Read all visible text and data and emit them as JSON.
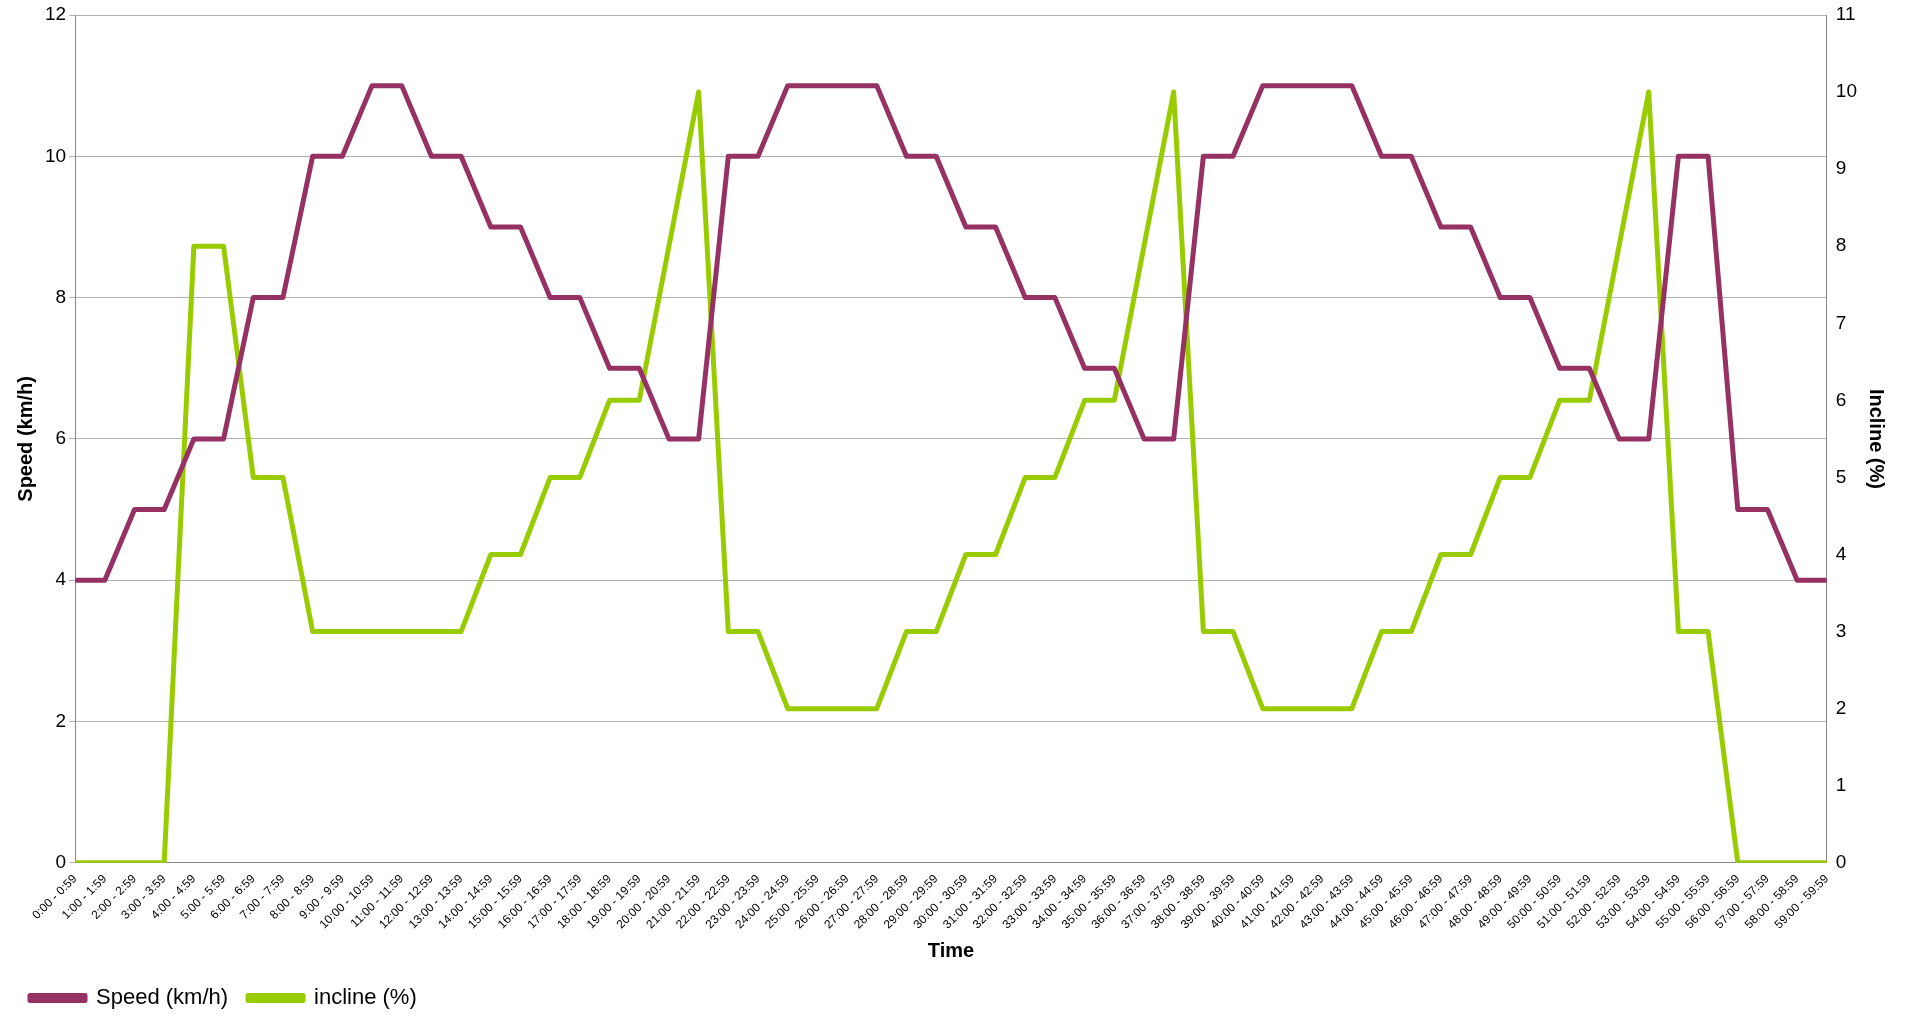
{
  "chart_data": {
    "type": "line",
    "xlabel": "Time",
    "ylabel": "Speed (km/h)",
    "y2label": "Incline (%)",
    "categories": [
      "0:00 - 0:59",
      "1:00 - 1:59",
      "2:00 - 2:59",
      "3:00 - 3:59",
      "4:00 - 4:59",
      "5:00 - 5:59",
      "6:00 - 6:59",
      "7:00 - 7:59",
      "8:00 - 8:59",
      "9:00 - 9:59",
      "10:00 - 10:59",
      "11:00 - 11:59",
      "12:00 - 12:59",
      "13:00 - 13:59",
      "14:00 - 14:59",
      "15:00 - 15:59",
      "16:00 - 16:59",
      "17:00 - 17:59",
      "18:00 - 18:59",
      "19:00 - 19:59",
      "20:00 - 20:59",
      "21:00 - 21:59",
      "22:00 - 22:59",
      "23:00 - 23:59",
      "24:00 - 24:59",
      "25:00 - 25:59",
      "26:00 - 26:59",
      "27:00 - 27:59",
      "28:00 - 28:59",
      "29:00 - 29:59",
      "30:00 - 30:59",
      "31:00 - 31:59",
      "32:00 - 32:59",
      "33:00 - 33:59",
      "34:00 - 34:59",
      "35:00 - 35:59",
      "36:00 - 36:59",
      "37:00 - 37:59",
      "38:00 - 38:59",
      "39:00 - 39:59",
      "40:00 - 40:59",
      "41:00 - 41:59",
      "42:00 - 42:59",
      "43:00 - 43:59",
      "44:00 - 44:59",
      "45:00 - 45:59",
      "46:00 - 46:59",
      "47:00 - 47:59",
      "48:00 - 48:59",
      "49:00 - 49:59",
      "50:00 - 50:59",
      "51:00 - 51:59",
      "52:00 - 52:59",
      "53:00 - 53:59",
      "54:00 - 54:59",
      "55:00 - 55:59",
      "56:00 - 56:59",
      "57:00 - 57:59",
      "58:00 - 58:59",
      "59:00 - 59:59"
    ],
    "series": [
      {
        "name": "Speed (km/h)",
        "color": "#953163",
        "values": [
          4,
          4,
          5,
          5,
          6,
          6,
          8,
          8,
          10,
          10,
          11,
          11,
          10,
          10,
          9,
          9,
          8,
          8,
          7,
          7,
          6,
          6,
          10,
          10,
          11,
          11,
          11,
          11,
          10,
          10,
          9,
          9,
          8,
          8,
          7,
          7,
          6,
          6,
          10,
          10,
          11,
          11,
          11,
          11,
          10,
          10,
          9,
          9,
          8,
          8,
          7,
          7,
          6,
          6,
          10,
          10,
          5,
          5,
          4,
          4
        ]
      },
      {
        "name": "incline (%)",
        "color": "#99cc00",
        "axis": "y2",
        "values": [
          0,
          0,
          0,
          0,
          8,
          8,
          5,
          5,
          3,
          3,
          3,
          3,
          3,
          3,
          4,
          4,
          5,
          5,
          6,
          6,
          8,
          10,
          3,
          3,
          2,
          2,
          2,
          2,
          3,
          3,
          4,
          4,
          5,
          5,
          6,
          6,
          8,
          10,
          3,
          3,
          2,
          2,
          2,
          2,
          3,
          3,
          4,
          4,
          5,
          5,
          6,
          6,
          8,
          10,
          3,
          3,
          0,
          0,
          0,
          0
        ]
      }
    ],
    "ylim": [
      0,
      12
    ],
    "yticks": [
      0,
      2,
      4,
      6,
      8,
      10,
      12
    ],
    "y2lim": [
      0,
      11
    ],
    "y2ticks": [
      0,
      1,
      2,
      3,
      4,
      5,
      6,
      7,
      8,
      9,
      10,
      11
    ],
    "grid": "y",
    "legend": "bottom left",
    "marker": "none",
    "line_style": "solid"
  }
}
